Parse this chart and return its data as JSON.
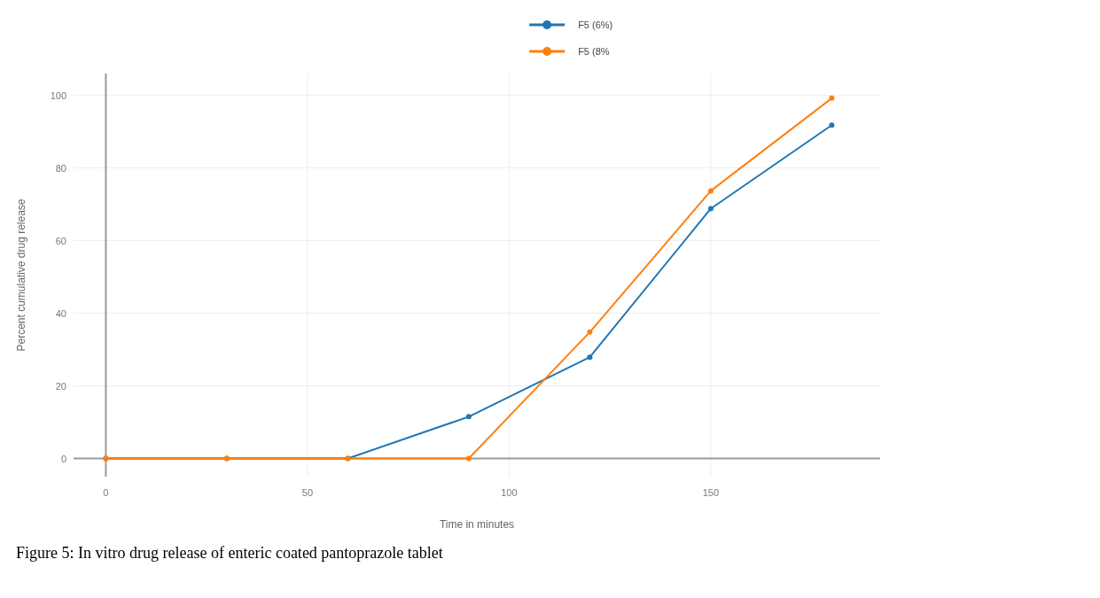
{
  "chart_data": {
    "type": "line",
    "xlabel": "Time in minutes",
    "ylabel": "Percent cumulative drug release",
    "annotations": [
      "Figure 5: In vitro drug release of enteric coated pantoprazole tablet"
    ],
    "x": [
      0,
      30,
      60,
      90,
      120,
      150,
      180
    ],
    "series": [
      {
        "name": "F5 (6%)",
        "color": "#1f77b4",
        "values": [
          0,
          0,
          0,
          11.5,
          27.9,
          68.8,
          91.8
        ]
      },
      {
        "name": "F5 (8%",
        "color": "#ff7f0e",
        "values": [
          0,
          0,
          0,
          0,
          34.8,
          73.7,
          99.2
        ]
      }
    ],
    "xlim": [
      -8,
      192
    ],
    "ylim": [
      -5,
      106
    ],
    "xticks": [
      0,
      50,
      100,
      150
    ],
    "yticks": [
      0,
      20,
      40,
      60,
      80,
      100
    ],
    "grid": true,
    "legend": "top",
    "marker": "circle",
    "line_style": "solid"
  }
}
